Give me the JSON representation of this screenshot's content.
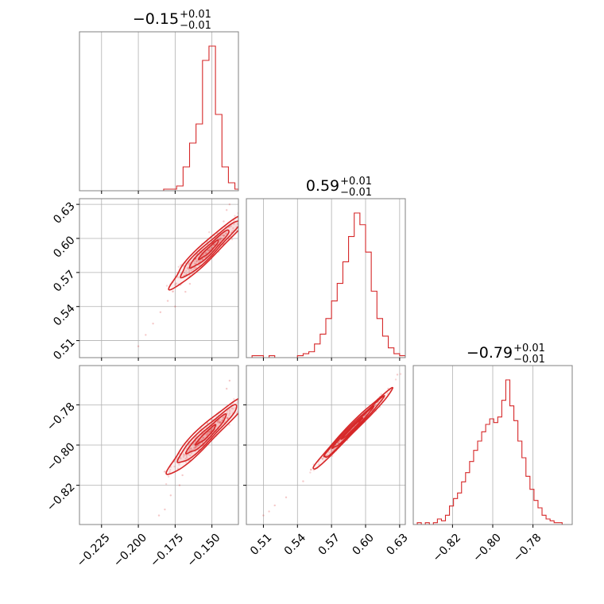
{
  "chart_data": {
    "type": "corner",
    "color": "#d62728",
    "grid": true,
    "panels": [
      {
        "kind": "histogram",
        "row": 0,
        "col": 0,
        "title": {
          "value": "−0.15",
          "plus": "+0.01",
          "minus": "−0.01"
        },
        "xlim": [
          -0.24,
          -0.132
        ],
        "x_ticks": [
          -0.225,
          -0.2,
          -0.175,
          -0.15
        ],
        "x_tick_labels": [],
        "bin_edges": [
          -0.24,
          -0.2356,
          -0.2312,
          -0.2268,
          -0.2224,
          -0.218,
          -0.2136,
          -0.2092,
          -0.2048,
          -0.2004,
          -0.196,
          -0.1916,
          -0.1872,
          -0.1828,
          -0.1784,
          -0.174,
          -0.1696,
          -0.1652,
          -0.1608,
          -0.1564,
          -0.152,
          -0.1476,
          -0.1432,
          -0.1388,
          -0.1344,
          -0.132
        ],
        "counts": [
          0,
          0,
          0,
          0,
          0,
          0,
          0,
          0,
          0,
          0,
          0,
          0,
          0,
          0.01,
          0.01,
          0.03,
          0.15,
          0.3,
          0.42,
          0.82,
          0.91,
          0.48,
          0.15,
          0.05,
          0.01
        ]
      },
      {
        "kind": "histogram",
        "row": 1,
        "col": 1,
        "title": {
          "value": "0.59",
          "plus": "+0.01",
          "minus": "−0.01"
        },
        "xlim": [
          0.495,
          0.635
        ],
        "x_ticks": [
          0.51,
          0.54,
          0.57,
          0.6,
          0.63
        ],
        "x_tick_labels": [],
        "bin_edges": [
          0.495,
          0.5,
          0.505,
          0.51,
          0.515,
          0.52,
          0.525,
          0.53,
          0.535,
          0.54,
          0.545,
          0.55,
          0.555,
          0.56,
          0.565,
          0.57,
          0.575,
          0.58,
          0.585,
          0.59,
          0.595,
          0.6,
          0.605,
          0.61,
          0.615,
          0.62,
          0.625,
          0.63,
          0.635
        ],
        "counts": [
          0,
          0.01,
          0.01,
          0,
          0.01,
          0,
          0,
          0,
          0,
          0.01,
          0.02,
          0.03,
          0.07,
          0.12,
          0.2,
          0.29,
          0.38,
          0.49,
          0.62,
          0.74,
          0.68,
          0.54,
          0.34,
          0.2,
          0.11,
          0.05,
          0.02,
          0.01
        ]
      },
      {
        "kind": "histogram",
        "row": 2,
        "col": 2,
        "title": {
          "value": "−0.79",
          "plus": "+0.01",
          "minus": "−0.01"
        },
        "xlim": [
          -0.8395,
          -0.7605
        ],
        "x_ticks": [
          -0.82,
          -0.8,
          -0.78
        ],
        "x_tick_labels": [
          "−0.82",
          "−0.80",
          "−0.78"
        ],
        "bin_edges": [
          -0.8395,
          -0.8375,
          -0.8355,
          -0.8335,
          -0.8315,
          -0.8295,
          -0.8275,
          -0.8255,
          -0.8235,
          -0.8215,
          -0.8195,
          -0.8175,
          -0.8155,
          -0.8135,
          -0.8115,
          -0.8095,
          -0.8075,
          -0.8055,
          -0.8035,
          -0.8015,
          -0.7995,
          -0.7975,
          -0.7955,
          -0.7935,
          -0.7915,
          -0.7895,
          -0.7875,
          -0.7855,
          -0.7835,
          -0.7815,
          -0.7795,
          -0.7775,
          -0.7755,
          -0.7735,
          -0.7715,
          -0.7695,
          -0.7675,
          -0.7655,
          -0.7635,
          -0.7605
        ],
        "counts": [
          0,
          0.01,
          0,
          0.01,
          0,
          0.01,
          0.03,
          0.02,
          0.05,
          0.1,
          0.14,
          0.17,
          0.23,
          0.28,
          0.34,
          0.4,
          0.45,
          0.5,
          0.54,
          0.57,
          0.55,
          0.58,
          0.67,
          0.78,
          0.64,
          0.56,
          0.45,
          0.36,
          0.26,
          0.19,
          0.13,
          0.09,
          0.05,
          0.03,
          0.02,
          0.01,
          0.01,
          0,
          0
        ]
      },
      {
        "kind": "2d",
        "row": 1,
        "col": 0,
        "xlim": [
          -0.24,
          -0.132
        ],
        "ylim": [
          0.495,
          0.635
        ],
        "x_ticks": [
          -0.225,
          -0.2,
          -0.175,
          -0.15
        ],
        "y_ticks": [
          0.51,
          0.54,
          0.57,
          0.6,
          0.63
        ],
        "x_tick_labels": [],
        "y_tick_labels": [
          "0.51",
          "0.54",
          "0.57",
          "0.60",
          "0.63"
        ],
        "center": [
          -0.152,
          0.59
        ],
        "direction": [
          0.0132,
          0.0165
        ],
        "perp": [
          -0.0024,
          0.0019
        ],
        "contour_levels": [
          0.5,
          1.0,
          1.5,
          2.0
        ],
        "outliers": [
          [
            -0.18,
            0.545
          ],
          [
            -0.175,
            0.54
          ],
          [
            -0.19,
            0.525
          ],
          [
            -0.195,
            0.515
          ],
          [
            -0.2,
            0.505
          ],
          [
            -0.165,
            0.56
          ],
          [
            -0.168,
            0.553
          ],
          [
            -0.14,
            0.625
          ],
          [
            -0.138,
            0.63
          ],
          [
            -0.142,
            0.615
          ],
          [
            -0.185,
            0.535
          ]
        ]
      },
      {
        "kind": "2d",
        "row": 2,
        "col": 0,
        "xlim": [
          -0.24,
          -0.132
        ],
        "ylim": [
          -0.8395,
          -0.7605
        ],
        "x_ticks": [
          -0.225,
          -0.2,
          -0.175,
          -0.15
        ],
        "y_ticks": [
          -0.82,
          -0.8,
          -0.78
        ],
        "x_tick_labels": [
          "−0.225",
          "−0.200",
          "−0.175",
          "−0.150"
        ],
        "y_tick_labels": [
          "−0.82",
          "−0.80",
          "−0.78"
        ],
        "center": [
          -0.154,
          -0.795
        ],
        "direction": [
          0.0132,
          0.0095
        ],
        "perp": [
          -0.0025,
          0.0012
        ],
        "contour_levels": [
          0.5,
          1.0,
          1.5,
          2.0
        ],
        "outliers": [
          [
            -0.178,
            -0.825
          ],
          [
            -0.182,
            -0.832
          ],
          [
            -0.17,
            -0.815
          ],
          [
            -0.14,
            -0.772
          ],
          [
            -0.138,
            -0.768
          ],
          [
            -0.186,
            -0.835
          ],
          [
            -0.172,
            -0.82
          ]
        ]
      },
      {
        "kind": "2d",
        "row": 2,
        "col": 1,
        "xlim": [
          0.495,
          0.635
        ],
        "ylim": [
          -0.8395,
          -0.7605
        ],
        "x_ticks": [
          0.51,
          0.54,
          0.57,
          0.6,
          0.63
        ],
        "y_ticks": [
          -0.82,
          -0.8,
          -0.78
        ],
        "x_tick_labels": [
          "0.51",
          "0.54",
          "0.57",
          "0.60",
          "0.63"
        ],
        "y_tick_labels": [],
        "center": [
          0.588,
          -0.792
        ],
        "direction": [
          0.0175,
          0.01
        ],
        "perp": [
          -0.0006,
          0.0011
        ],
        "contour_levels": [
          0.5,
          1.0,
          1.5,
          2.0
        ],
        "outliers": [
          [
            0.51,
            -0.835
          ],
          [
            0.52,
            -0.83
          ],
          [
            0.53,
            -0.826
          ],
          [
            0.545,
            -0.818
          ],
          [
            0.62,
            -0.772
          ],
          [
            0.628,
            -0.765
          ],
          [
            0.515,
            -0.833
          ]
        ]
      }
    ]
  }
}
